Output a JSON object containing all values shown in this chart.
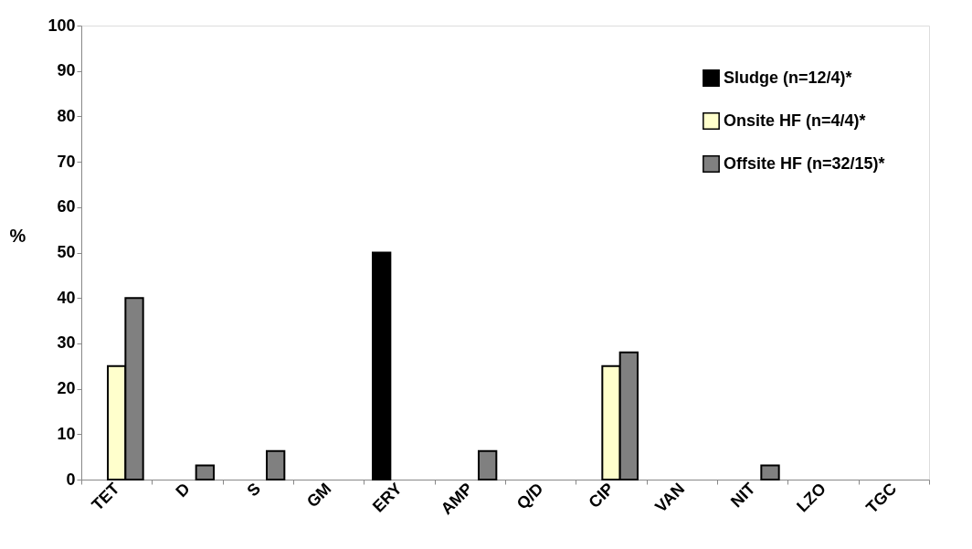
{
  "chart_data": {
    "type": "bar",
    "ylabel": "%",
    "categories": [
      "TET",
      "D",
      "S",
      "GM",
      "ERY",
      "AMP",
      "Q/D",
      "CIP",
      "VAN",
      "NIT",
      "LZO",
      "TGC"
    ],
    "series": [
      {
        "name": "Sludge (n=12/4)*",
        "color": "#000000",
        "values": [
          null,
          null,
          null,
          null,
          50,
          null,
          null,
          null,
          null,
          null,
          null,
          null
        ]
      },
      {
        "name": "Onsite HF (n=4/4)*",
        "color": "#ffffcc",
        "values": [
          25,
          null,
          null,
          null,
          null,
          null,
          null,
          25,
          null,
          null,
          null,
          null
        ]
      },
      {
        "name": "Offsite HF (n=32/15)*",
        "color": "#808080",
        "values": [
          40,
          3.1,
          6.3,
          null,
          null,
          6.3,
          null,
          28,
          null,
          3.1,
          null,
          null
        ]
      }
    ],
    "ylim": [
      0,
      100
    ],
    "yticks": [
      0,
      10,
      20,
      30,
      40,
      50,
      60,
      70,
      80,
      90,
      100
    ],
    "grid": false,
    "legend": "top right"
  }
}
